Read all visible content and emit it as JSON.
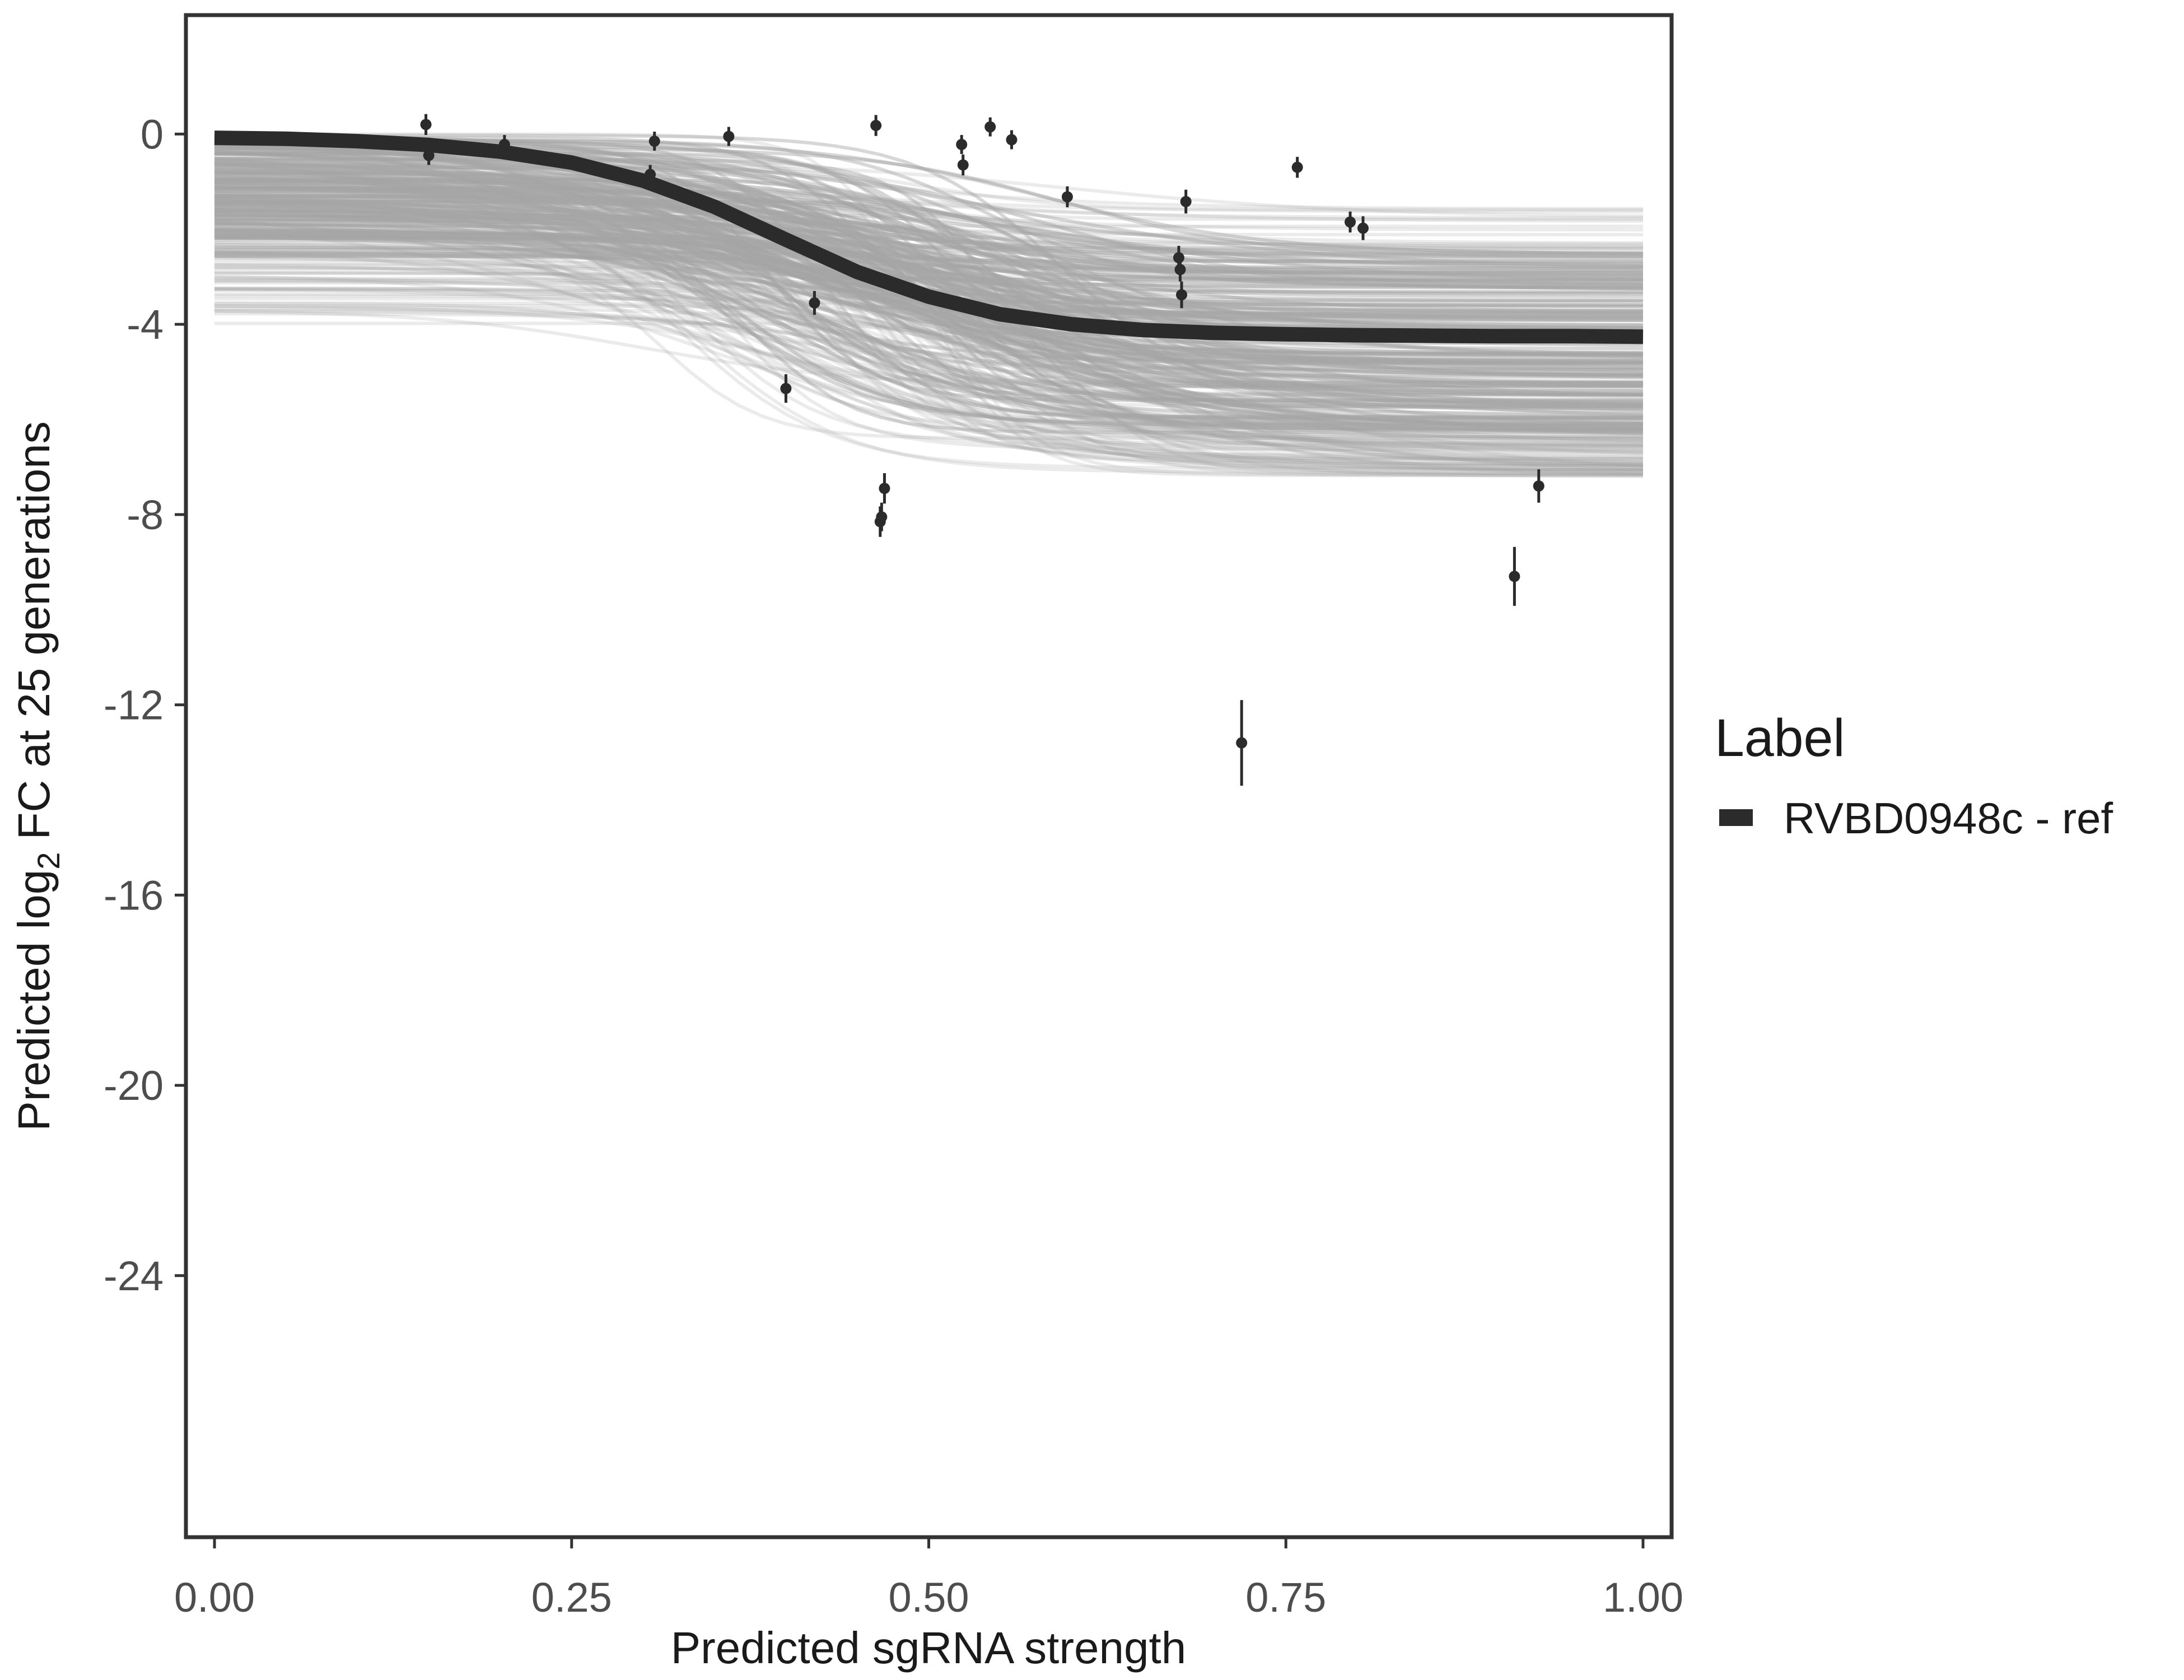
{
  "chart_data": {
    "type": "line",
    "xlabel": "Predicted sgRNA strength",
    "ylabel_parts": {
      "prefix": "Predicted  log",
      "subscript": "2",
      "suffix": " FC at 25 generations"
    },
    "xlim": [
      -0.02,
      1.02
    ],
    "ylim": [
      -29.5,
      2.5
    ],
    "xticks": [
      0.0,
      0.25,
      0.5,
      0.75,
      1.0
    ],
    "xtick_labels": [
      "0.00",
      "0.25",
      "0.50",
      "0.75",
      "1.00"
    ],
    "yticks": [
      0,
      -4,
      -8,
      -12,
      -16,
      -20,
      -24
    ],
    "ytick_labels": [
      "0",
      "-4",
      "-8",
      "-12",
      "-16",
      "-20",
      "-24"
    ],
    "grid": false,
    "legend": {
      "title": "Label",
      "position": "right",
      "entries": [
        {
          "label": "RVBD0948c - ref",
          "color": "#2b2b2b"
        }
      ]
    },
    "series": [
      {
        "name": "RVBD0948c - ref",
        "kind": "fitted-curve",
        "color": "#2b2b2b",
        "x": [
          0.0,
          0.05,
          0.1,
          0.15,
          0.2,
          0.25,
          0.3,
          0.35,
          0.4,
          0.45,
          0.5,
          0.55,
          0.6,
          0.65,
          0.7,
          0.75,
          0.8,
          0.85,
          0.9,
          0.95,
          1.0
        ],
        "y": [
          -0.08,
          -0.1,
          -0.15,
          -0.23,
          -0.37,
          -0.6,
          -0.98,
          -1.53,
          -2.22,
          -2.9,
          -3.42,
          -3.79,
          -4.0,
          -4.12,
          -4.18,
          -4.21,
          -4.23,
          -4.24,
          -4.25,
          -4.25,
          -4.26
        ]
      },
      {
        "name": "",
        "kind": "posterior-draws",
        "color": "#a6a6a6",
        "count": 300,
        "start_range": [
          -4.0,
          0.0
        ],
        "end_range": [
          -7.2,
          -1.5
        ]
      }
    ],
    "points": [
      {
        "x": 0.148,
        "y": 0.2,
        "err": 0.22
      },
      {
        "x": 0.15,
        "y": -0.45,
        "err": 0.2
      },
      {
        "x": 0.203,
        "y": -0.22,
        "err": 0.2
      },
      {
        "x": 0.305,
        "y": -0.85,
        "err": 0.2
      },
      {
        "x": 0.308,
        "y": -0.15,
        "err": 0.2
      },
      {
        "x": 0.36,
        "y": -0.05,
        "err": 0.2
      },
      {
        "x": 0.4,
        "y": -5.35,
        "err": 0.3
      },
      {
        "x": 0.42,
        "y": -3.55,
        "err": 0.25
      },
      {
        "x": 0.463,
        "y": 0.18,
        "err": 0.22
      },
      {
        "x": 0.466,
        "y": -8.15,
        "err": 0.32
      },
      {
        "x": 0.467,
        "y": -8.05,
        "err": 0.3
      },
      {
        "x": 0.469,
        "y": -7.45,
        "err": 0.32
      },
      {
        "x": 0.523,
        "y": -0.22,
        "err": 0.2
      },
      {
        "x": 0.524,
        "y": -0.65,
        "err": 0.22
      },
      {
        "x": 0.543,
        "y": 0.15,
        "err": 0.2
      },
      {
        "x": 0.558,
        "y": -0.12,
        "err": 0.2
      },
      {
        "x": 0.597,
        "y": -1.32,
        "err": 0.22
      },
      {
        "x": 0.675,
        "y": -2.6,
        "err": 0.25
      },
      {
        "x": 0.676,
        "y": -2.85,
        "err": 0.25
      },
      {
        "x": 0.677,
        "y": -3.38,
        "err": 0.28
      },
      {
        "x": 0.68,
        "y": -1.42,
        "err": 0.25
      },
      {
        "x": 0.719,
        "y": -12.8,
        "err": 0.9
      },
      {
        "x": 0.758,
        "y": -0.7,
        "err": 0.22
      },
      {
        "x": 0.795,
        "y": -1.85,
        "err": 0.22
      },
      {
        "x": 0.804,
        "y": -1.98,
        "err": 0.25
      },
      {
        "x": 0.91,
        "y": -9.3,
        "err": 0.62
      },
      {
        "x": 0.927,
        "y": -7.4,
        "err": 0.35
      }
    ]
  }
}
